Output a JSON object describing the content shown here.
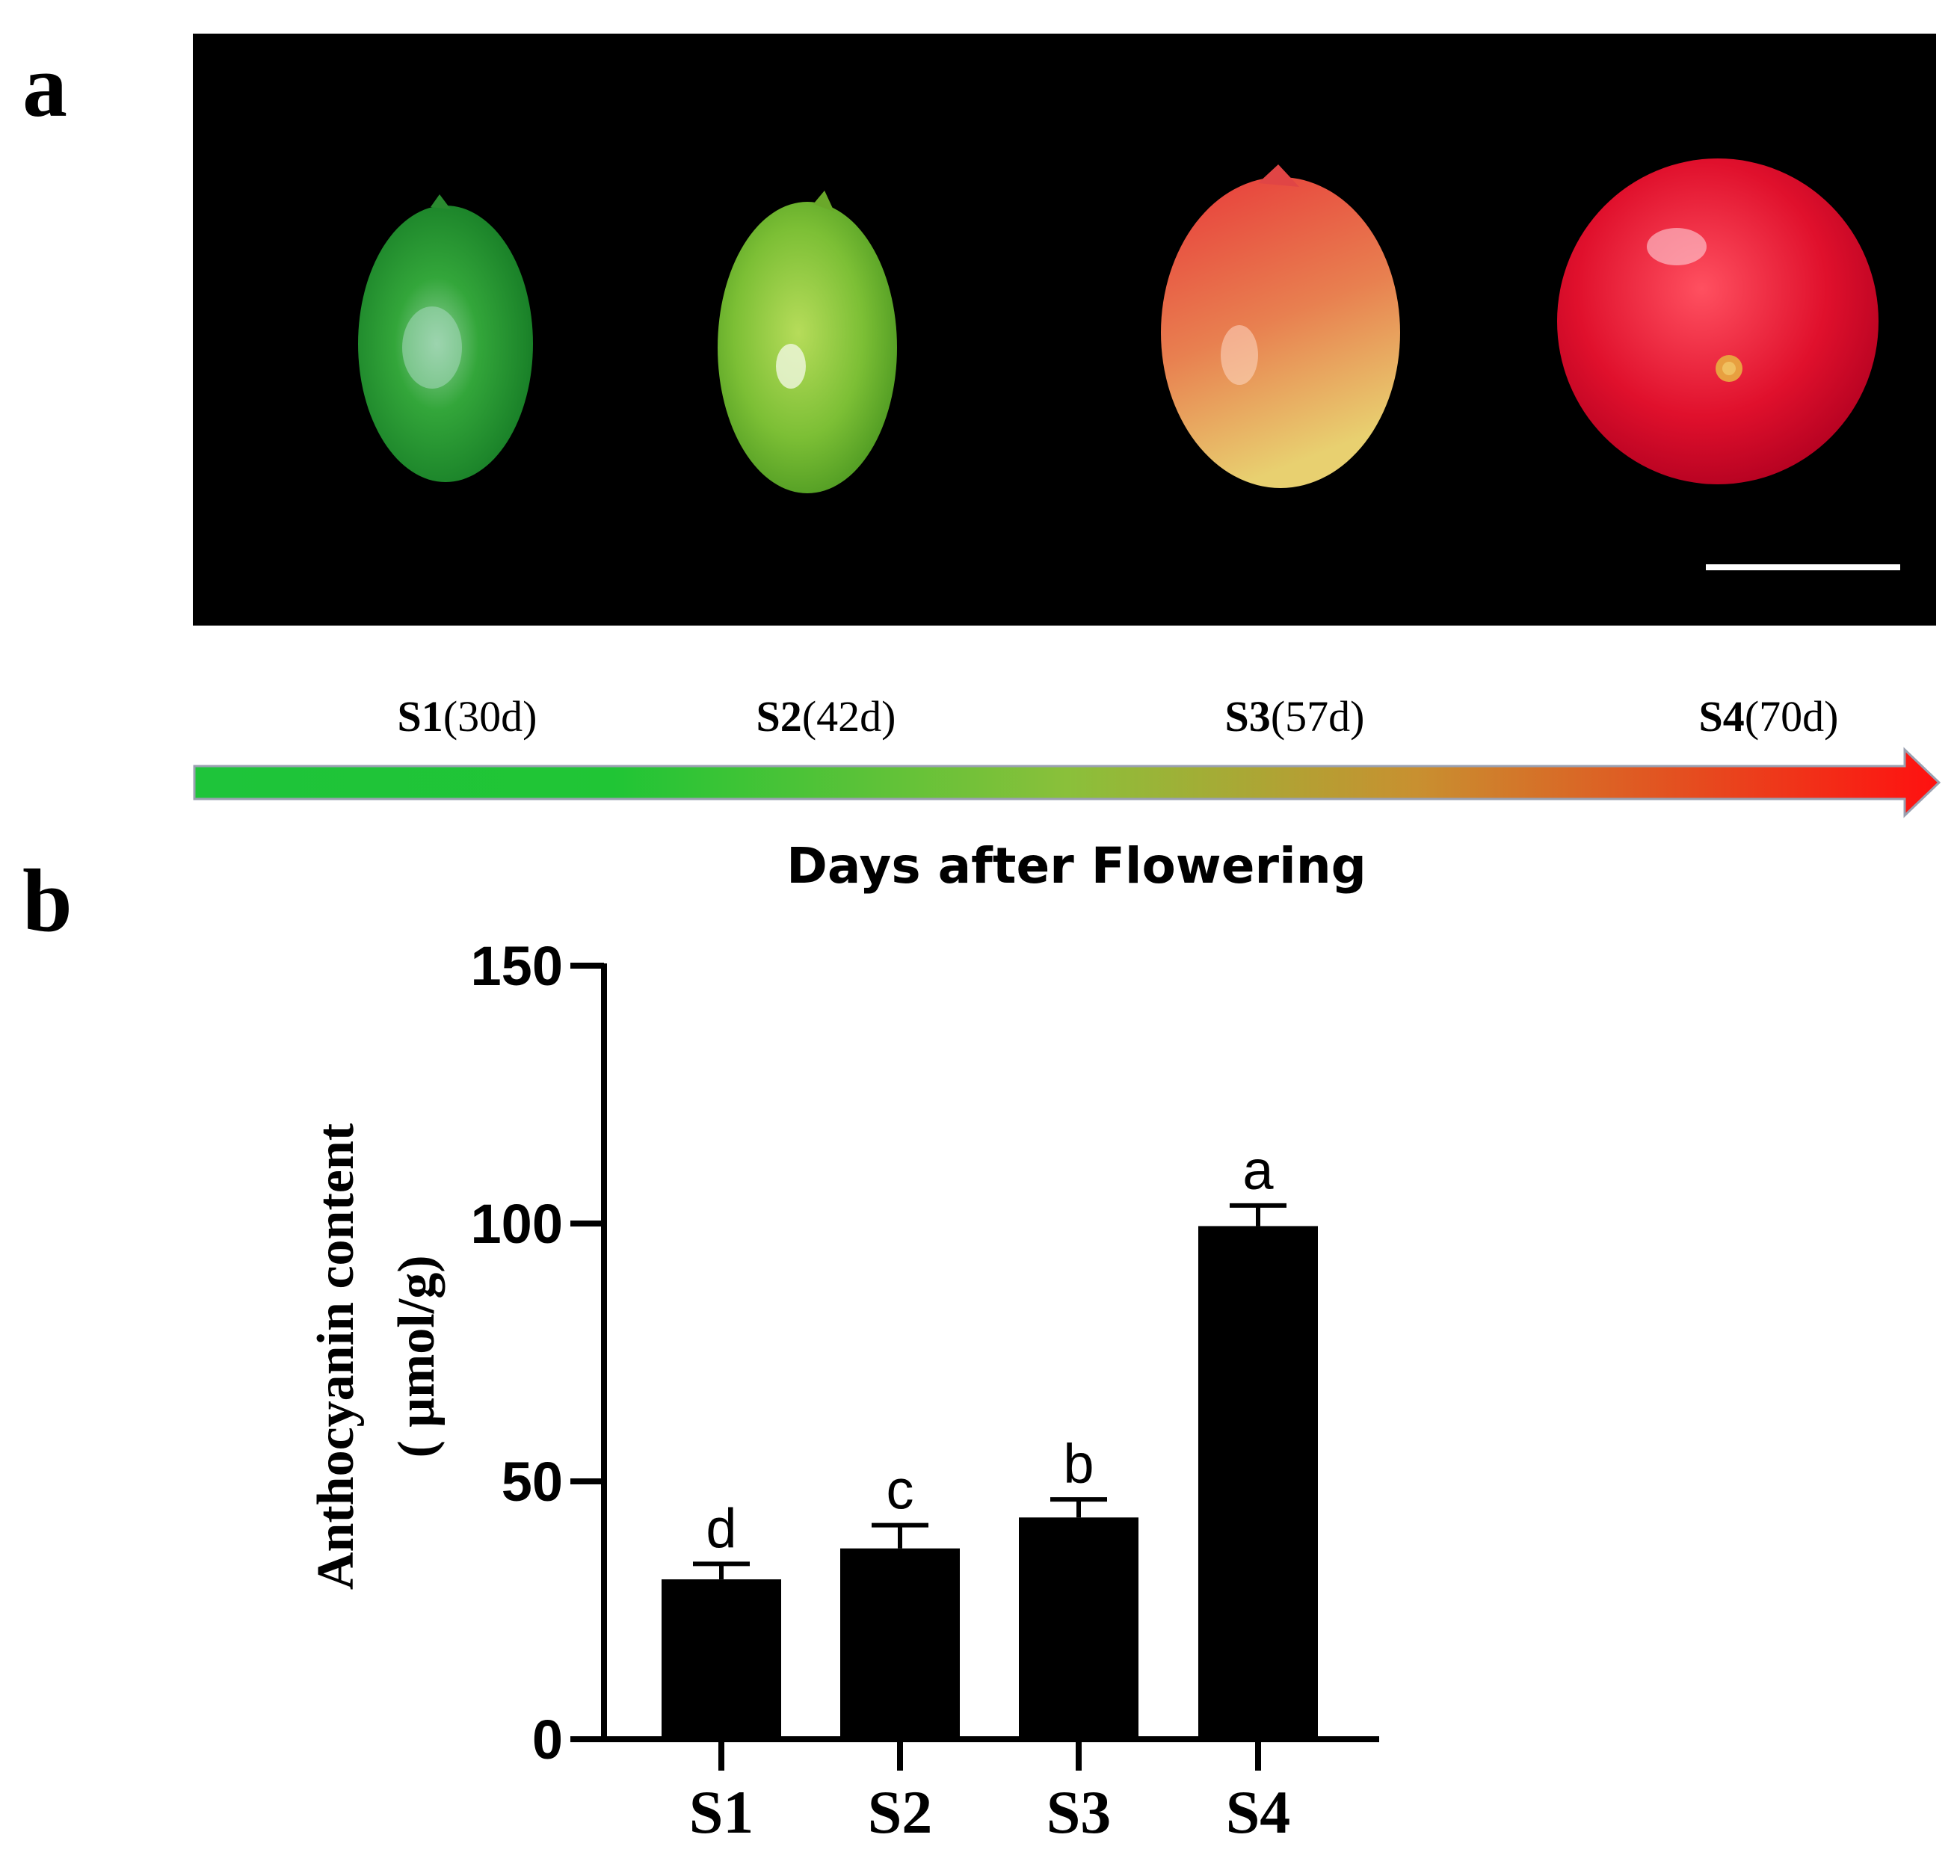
{
  "panels": {
    "a": "a",
    "b": "b"
  },
  "stages": [
    {
      "code": "S1",
      "days": "(30d)"
    },
    {
      "code": "S2",
      "days": "(42d)"
    },
    {
      "code": "S3",
      "days": "(57d)"
    },
    {
      "code": "S4",
      "days": "(70d)"
    }
  ],
  "timeline_title": "Days after Flowering",
  "photo": {
    "background": "#000000",
    "fruit_colors": [
      "#2fa535",
      "#7dc23a",
      "#e8704a",
      "#e01030"
    ],
    "scale_bar": true
  },
  "gradient_colors": [
    "#1ec43a",
    "#e8a030",
    "#ff1010"
  ],
  "chart_data": {
    "type": "bar",
    "categories": [
      "S1",
      "S2",
      "S3",
      "S4"
    ],
    "values": [
      31,
      37,
      43,
      99.5
    ],
    "errors": [
      3,
      4.5,
      3.5,
      4
    ],
    "significance": [
      "d",
      "c",
      "b",
      "a"
    ],
    "ylim": [
      0,
      150
    ],
    "yticks": [
      0,
      50,
      100,
      150
    ],
    "ylabel_line1": "Anthocyanin content",
    "ylabel_line2": "( μmol/g)",
    "bar_color": "#000000",
    "grid": false
  }
}
